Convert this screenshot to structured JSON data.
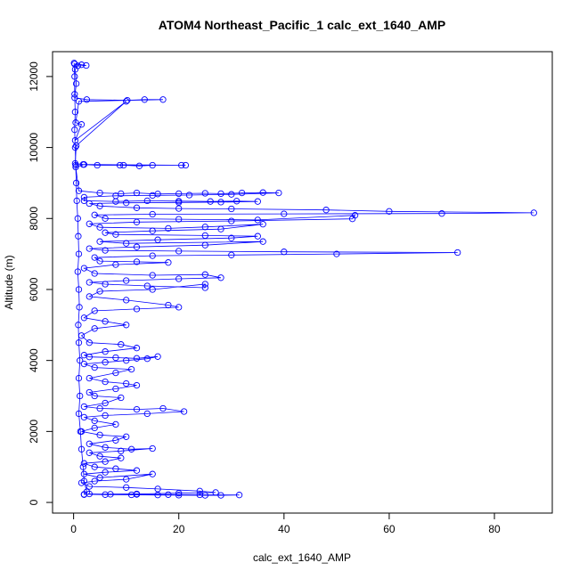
{
  "chart_data": {
    "type": "scatter",
    "title": "ATOM4 Northeast_Pacific_1 calc_ext_1640_AMP",
    "xlabel": "calc_ext_1640_AMP",
    "ylabel": "Altitude (m)",
    "xlim": [
      -4,
      91
    ],
    "ylim": [
      -300,
      12700
    ],
    "x_ticks": [
      0,
      20,
      40,
      60,
      80
    ],
    "x_tick_labels": [
      "0",
      "20",
      "40",
      "60",
      "80"
    ],
    "y_ticks": [
      0,
      2000,
      4000,
      6000,
      8000,
      10000,
      12000
    ],
    "y_tick_labels": [
      "0",
      "2000",
      "4000",
      "6000",
      "8000",
      "10000",
      "12000"
    ],
    "marker": "open-circle",
    "connected": true,
    "grid": false,
    "color": "#0000ff",
    "series": [
      {
        "points": [
          [
            0.2,
            12350
          ],
          [
            1.5,
            12330
          ],
          [
            2.4,
            12310
          ],
          [
            0.8,
            12300
          ],
          [
            0.3,
            12200
          ],
          [
            0.5,
            11800
          ],
          [
            0.2,
            11400
          ],
          [
            2.5,
            11350
          ],
          [
            10.2,
            11330
          ],
          [
            13.5,
            11350
          ],
          [
            17.0,
            11350
          ],
          [
            1.0,
            11300
          ],
          [
            0.4,
            10700
          ],
          [
            1.5,
            10650
          ],
          [
            0.3,
            10200
          ],
          [
            10.0,
            11300
          ],
          [
            0.5,
            10050
          ],
          [
            0.3,
            9550
          ],
          [
            1.8,
            9520
          ],
          [
            4.5,
            9500
          ],
          [
            8.8,
            9500
          ],
          [
            9.5,
            9500
          ],
          [
            12.5,
            9480
          ],
          [
            15.0,
            9500
          ],
          [
            20.5,
            9500
          ],
          [
            21.3,
            9500
          ],
          [
            2.0,
            9520
          ],
          [
            0.4,
            9450
          ],
          [
            1.0,
            8780
          ],
          [
            5.0,
            8720
          ],
          [
            9.0,
            8700
          ],
          [
            12.0,
            8720
          ],
          [
            16.0,
            8690
          ],
          [
            20.0,
            8700
          ],
          [
            25.0,
            8710
          ],
          [
            28.0,
            8700
          ],
          [
            32.0,
            8720
          ],
          [
            36.0,
            8730
          ],
          [
            39.0,
            8720
          ],
          [
            30.0,
            8680
          ],
          [
            22.0,
            8660
          ],
          [
            15.0,
            8650
          ],
          [
            8.0,
            8640
          ],
          [
            2.0,
            8600
          ],
          [
            2.0,
            8500
          ],
          [
            8.0,
            8480
          ],
          [
            14.0,
            8500
          ],
          [
            20.0,
            8490
          ],
          [
            26.0,
            8480
          ],
          [
            31.0,
            8490
          ],
          [
            35.0,
            8480
          ],
          [
            28.0,
            8460
          ],
          [
            20.0,
            8450
          ],
          [
            10.0,
            8440
          ],
          [
            3.0,
            8420
          ],
          [
            5.0,
            8350
          ],
          [
            12.0,
            8300
          ],
          [
            20.0,
            8280
          ],
          [
            30.0,
            8270
          ],
          [
            48.0,
            8240
          ],
          [
            60.0,
            8200
          ],
          [
            87.5,
            8160
          ],
          [
            70.0,
            8140
          ],
          [
            40.0,
            8130
          ],
          [
            15.0,
            8120
          ],
          [
            4.0,
            8100
          ],
          [
            6.0,
            8000
          ],
          [
            20.0,
            7980
          ],
          [
            35.0,
            7960
          ],
          [
            53.5,
            8090
          ],
          [
            53.0,
            7990
          ],
          [
            30.0,
            7930
          ],
          [
            12.0,
            7900
          ],
          [
            3.0,
            7850
          ],
          [
            5.0,
            7750
          ],
          [
            18.0,
            7720
          ],
          [
            25.0,
            7760
          ],
          [
            36.0,
            7840
          ],
          [
            28.0,
            7700
          ],
          [
            15.0,
            7650
          ],
          [
            6.0,
            7600
          ],
          [
            8.0,
            7550
          ],
          [
            25.0,
            7520
          ],
          [
            35.0,
            7500
          ],
          [
            30.0,
            7450
          ],
          [
            16.0,
            7400
          ],
          [
            5.0,
            7350
          ],
          [
            10.0,
            7300
          ],
          [
            36.0,
            7350
          ],
          [
            25.0,
            7250
          ],
          [
            12.0,
            7200
          ],
          [
            3.0,
            7150
          ],
          [
            6.0,
            7100
          ],
          [
            20.0,
            7080
          ],
          [
            40.0,
            7060
          ],
          [
            73.0,
            7040
          ],
          [
            50.0,
            7000
          ],
          [
            30.0,
            6970
          ],
          [
            15.0,
            6950
          ],
          [
            4.0,
            6900
          ],
          [
            5.0,
            6800
          ],
          [
            12.0,
            6780
          ],
          [
            18.0,
            6760
          ],
          [
            8.0,
            6700
          ],
          [
            2.0,
            6600
          ],
          [
            4.0,
            6450
          ],
          [
            15.0,
            6400
          ],
          [
            25.0,
            6420
          ],
          [
            28.0,
            6330
          ],
          [
            20.0,
            6300
          ],
          [
            10.0,
            6250
          ],
          [
            3.0,
            6200
          ],
          [
            6.0,
            6150
          ],
          [
            14.0,
            6100
          ],
          [
            25.0,
            6050
          ],
          [
            25.0,
            6150
          ],
          [
            15.0,
            6000
          ],
          [
            5.0,
            5950
          ],
          [
            3.0,
            5800
          ],
          [
            10.0,
            5700
          ],
          [
            18.0,
            5560
          ],
          [
            20.0,
            5500
          ],
          [
            12.0,
            5450
          ],
          [
            4.0,
            5400
          ],
          [
            2.0,
            5200
          ],
          [
            6.0,
            5100
          ],
          [
            10.0,
            5000
          ],
          [
            4.0,
            4900
          ],
          [
            1.5,
            4700
          ],
          [
            3.0,
            4500
          ],
          [
            9.0,
            4450
          ],
          [
            12.0,
            4350
          ],
          [
            6.0,
            4250
          ],
          [
            2.0,
            4150
          ],
          [
            3.0,
            4100
          ],
          [
            8.0,
            4080
          ],
          [
            12.0,
            4060
          ],
          [
            16.0,
            4110
          ],
          [
            14.0,
            4050
          ],
          [
            10.0,
            4000
          ],
          [
            6.0,
            3950
          ],
          [
            2.0,
            3900
          ],
          [
            4.0,
            3800
          ],
          [
            11.0,
            3750
          ],
          [
            8.0,
            3650
          ],
          [
            3.0,
            3500
          ],
          [
            6.0,
            3400
          ],
          [
            10.0,
            3350
          ],
          [
            12.0,
            3300
          ],
          [
            8.0,
            3200
          ],
          [
            3.0,
            3100
          ],
          [
            4.0,
            3000
          ],
          [
            9.0,
            2950
          ],
          [
            6.0,
            2800
          ],
          [
            2.0,
            2700
          ],
          [
            5.0,
            2650
          ],
          [
            12.0,
            2620
          ],
          [
            17.0,
            2650
          ],
          [
            21.0,
            2560
          ],
          [
            14.0,
            2500
          ],
          [
            6.0,
            2450
          ],
          [
            2.0,
            2400
          ],
          [
            4.0,
            2300
          ],
          [
            8.0,
            2200
          ],
          [
            4.0,
            2100
          ],
          [
            1.5,
            2000
          ],
          [
            5.0,
            1900
          ],
          [
            10.0,
            1850
          ],
          [
            8.0,
            1750
          ],
          [
            3.0,
            1650
          ],
          [
            6.0,
            1550
          ],
          [
            11.0,
            1500
          ],
          [
            15.0,
            1520
          ],
          [
            9.0,
            1450
          ],
          [
            3.0,
            1400
          ],
          [
            5.0,
            1300
          ],
          [
            9.0,
            1250
          ],
          [
            6.0,
            1150
          ],
          [
            2.0,
            1100
          ],
          [
            4.0,
            1000
          ],
          [
            8.0,
            950
          ],
          [
            12.0,
            900
          ],
          [
            6.0,
            850
          ],
          [
            2.0,
            800
          ],
          [
            5.0,
            700
          ],
          [
            15.0,
            800
          ],
          [
            10.0,
            650
          ],
          [
            4.0,
            600
          ],
          [
            1.5,
            550
          ],
          [
            3.0,
            450
          ],
          [
            10.0,
            420
          ],
          [
            16.0,
            380
          ],
          [
            24.0,
            320
          ],
          [
            27.0,
            280
          ],
          [
            20.0,
            260
          ],
          [
            12.0,
            240
          ],
          [
            2.0,
            230
          ],
          [
            6.0,
            220
          ],
          [
            11.0,
            215
          ],
          [
            16.0,
            210
          ],
          [
            20.0,
            205
          ],
          [
            25.0,
            200
          ],
          [
            28.0,
            200
          ],
          [
            31.5,
            210
          ],
          [
            24.0,
            215
          ],
          [
            18.0,
            220
          ],
          [
            12.0,
            225
          ],
          [
            7.0,
            230
          ],
          [
            3.0,
            240
          ]
        ]
      },
      {
        "points": [
          [
            0.1,
            12380
          ],
          [
            0.2,
            12000
          ],
          [
            0.2,
            11500
          ],
          [
            0.3,
            11000
          ],
          [
            0.2,
            10500
          ],
          [
            0.3,
            10000
          ],
          [
            0.4,
            9500
          ],
          [
            0.5,
            9000
          ],
          [
            0.6,
            8500
          ],
          [
            0.8,
            8000
          ],
          [
            0.9,
            7500
          ],
          [
            1.0,
            7000
          ],
          [
            0.8,
            6500
          ],
          [
            1.0,
            6000
          ],
          [
            1.1,
            5500
          ],
          [
            0.9,
            5000
          ],
          [
            1.0,
            4500
          ],
          [
            1.2,
            4000
          ],
          [
            1.0,
            3500
          ],
          [
            1.2,
            3000
          ],
          [
            1.0,
            2500
          ],
          [
            1.3,
            2000
          ],
          [
            1.5,
            1500
          ],
          [
            1.8,
            1000
          ],
          [
            2.0,
            600
          ],
          [
            2.5,
            300
          ],
          [
            2.0,
            220
          ]
        ]
      }
    ]
  }
}
